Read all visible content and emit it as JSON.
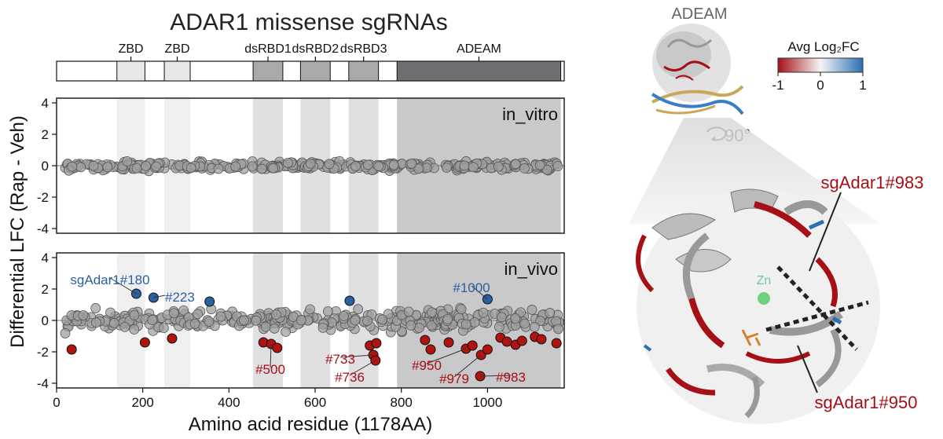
{
  "chart_data": {
    "type": "scatter",
    "title": "ADAR1 missense sgRNAs",
    "xlabel": "Amino acid residue (1178AA)",
    "ylabel": "Differential LFC (Rap - Veh)",
    "xlim": [
      0,
      1178
    ],
    "ylim": [
      -4.3,
      4.3
    ],
    "xticks": [
      0,
      200,
      400,
      600,
      800,
      1000
    ],
    "yticks": [
      4,
      2,
      0,
      -2,
      -4
    ],
    "domains": [
      {
        "name": "ZBD",
        "start": 140,
        "end": 205,
        "color": "#e8e8ea"
      },
      {
        "name": "ZBD",
        "start": 250,
        "end": 310,
        "color": "#e8e8ea"
      },
      {
        "name": "dsRBD1",
        "start": 456,
        "end": 525,
        "color": "#a9a9ac"
      },
      {
        "name": "dsRBD2",
        "start": 566,
        "end": 635,
        "color": "#a9a9ac"
      },
      {
        "name": "dsRBD3",
        "start": 678,
        "end": 747,
        "color": "#a9a9ac"
      },
      {
        "name": "ADEAM",
        "start": 790,
        "end": 1170,
        "color": "#6e6e72"
      }
    ],
    "panels": [
      {
        "name": "in_vitro",
        "points": []
      },
      {
        "name": "in_vivo",
        "highlighted_positive": [
          {
            "x": 185,
            "y": 1.7,
            "label": "sgAdar1#180"
          },
          {
            "x": 225,
            "y": 1.45,
            "label": "#223"
          },
          {
            "x": 355,
            "y": 1.2,
            "label": ""
          },
          {
            "x": 680,
            "y": 1.25,
            "label": ""
          },
          {
            "x": 1000,
            "y": 1.35,
            "label": "#1000"
          }
        ],
        "highlighted_negative": [
          {
            "x": 35,
            "y": -1.85,
            "label": ""
          },
          {
            "x": 205,
            "y": -1.4,
            "label": ""
          },
          {
            "x": 268,
            "y": -1.15,
            "label": ""
          },
          {
            "x": 480,
            "y": -1.4,
            "label": ""
          },
          {
            "x": 498,
            "y": -1.5,
            "label": "#500"
          },
          {
            "x": 512,
            "y": -1.75,
            "label": ""
          },
          {
            "x": 727,
            "y": -1.6,
            "label": ""
          },
          {
            "x": 742,
            "y": -1.45,
            "label": ""
          },
          {
            "x": 735,
            "y": -2.2,
            "label": "#733"
          },
          {
            "x": 740,
            "y": -2.55,
            "label": "#736"
          },
          {
            "x": 855,
            "y": -1.25,
            "label": ""
          },
          {
            "x": 868,
            "y": -1.85,
            "label": ""
          },
          {
            "x": 910,
            "y": -1.4,
            "label": ""
          },
          {
            "x": 950,
            "y": -1.8,
            "label": "#950"
          },
          {
            "x": 965,
            "y": -1.6,
            "label": ""
          },
          {
            "x": 985,
            "y": -2.2,
            "label": "#979"
          },
          {
            "x": 1000,
            "y": -1.85,
            "label": ""
          },
          {
            "x": 983,
            "y": -3.55,
            "label": "#983"
          },
          {
            "x": 1030,
            "y": -1.1,
            "label": ""
          },
          {
            "x": 1045,
            "y": -1.35,
            "label": ""
          },
          {
            "x": 1065,
            "y": -1.55,
            "label": ""
          },
          {
            "x": 1080,
            "y": -1.3,
            "label": ""
          },
          {
            "x": 1110,
            "y": -1.05,
            "label": ""
          },
          {
            "x": 1125,
            "y": -1.2,
            "label": ""
          },
          {
            "x": 1160,
            "y": -1.45,
            "label": ""
          }
        ]
      }
    ]
  },
  "structure": {
    "top_label": "ADEAM",
    "rotation_label": "90°",
    "zn_label": "Zn",
    "colorbar_title": "Avg Log₂FC",
    "colorbar_ticks": [
      "-1",
      "0",
      "1"
    ],
    "colors": {
      "neg": "#a50f15",
      "pos": "#2c6fb3",
      "mid": "#f5f5f5"
    },
    "callouts": [
      {
        "label": "sgAdar1#983",
        "color": "#a50f15"
      },
      {
        "label": "sgAdar1#950",
        "color": "#a50f15"
      }
    ]
  }
}
